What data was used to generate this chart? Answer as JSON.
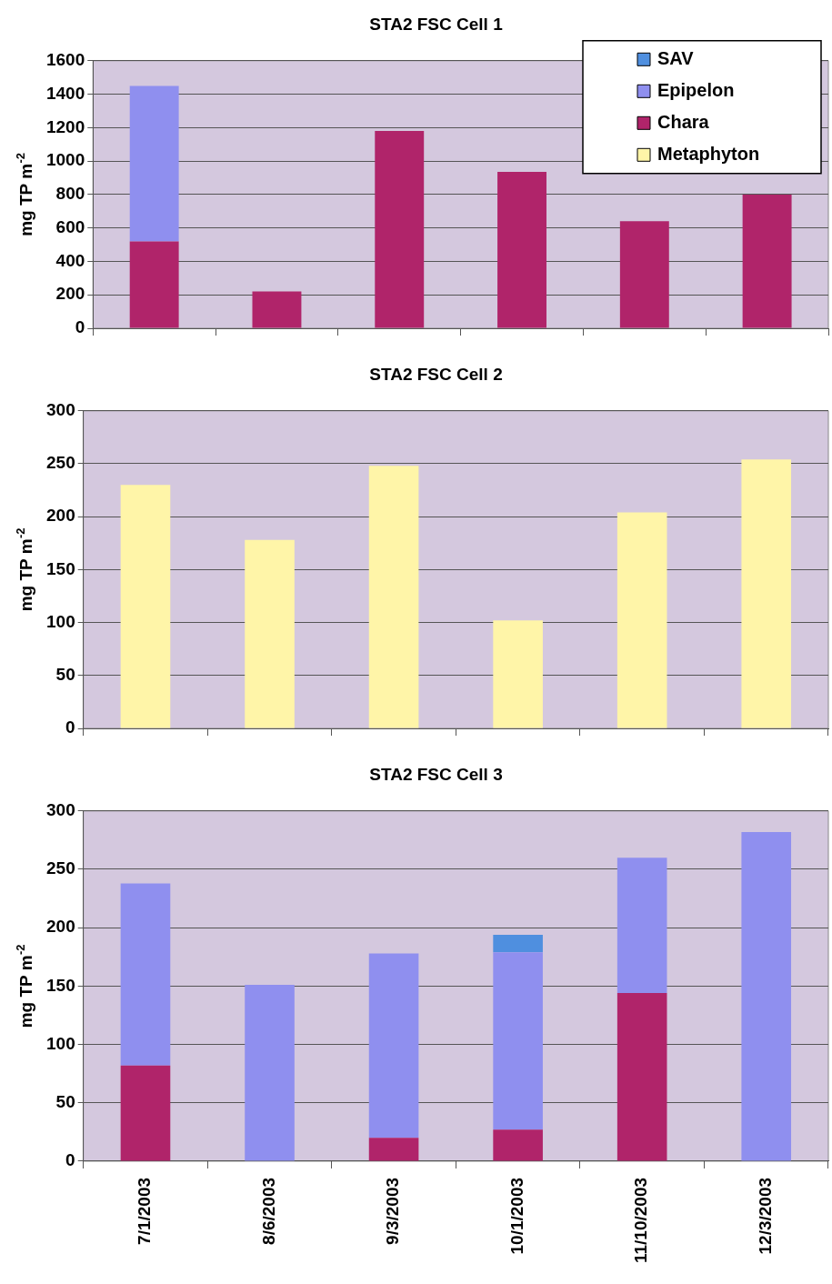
{
  "chart_data": [
    {
      "type": "bar",
      "title": "STA2 FSC Cell 1",
      "ylabel": "mg TP m$^{-2}$",
      "categories": [
        null,
        null,
        null,
        null,
        null,
        null
      ],
      "stacked": true,
      "ylim": [
        0,
        1600
      ],
      "yticks": [
        0,
        200,
        400,
        600,
        800,
        1000,
        1200,
        1400,
        1600
      ],
      "grid": "y",
      "legend": "top right",
      "series": [
        {
          "name": "Metaphyton",
          "color": "#fff5a8",
          "values": [
            null,
            null,
            null,
            null,
            null,
            null
          ]
        },
        {
          "name": "Chara",
          "color": "#b0246a",
          "values": [
            520,
            220,
            1180,
            935,
            640,
            800
          ]
        },
        {
          "name": "Epipelon",
          "color": "#8f8fef",
          "values": [
            930,
            null,
            null,
            null,
            null,
            null
          ]
        },
        {
          "name": "SAV",
          "color": "#4f8fdf",
          "values": [
            null,
            null,
            null,
            null,
            null,
            null
          ]
        }
      ]
    },
    {
      "type": "bar",
      "title": "STA2 FSC Cell 2",
      "ylabel": "mg TP m$^{-2}$",
      "categories": [
        null,
        null,
        null,
        null,
        null,
        null
      ],
      "stacked": true,
      "ylim": [
        0,
        300
      ],
      "yticks": [
        0,
        50,
        100,
        150,
        200,
        250,
        300
      ],
      "grid": "y",
      "series": [
        {
          "color": "#fff5a8",
          "values": [
            230,
            178,
            248,
            102,
            204,
            254
          ]
        }
      ]
    },
    {
      "type": "bar",
      "title": "STA2 FSC Cell 3",
      "ylabel": "mg TP m$^{-2}$",
      "categories": [
        "7/1/2003",
        "8/6/2003",
        "9/3/2003",
        "10/1/2003",
        "11/10/2003",
        "12/3/2003"
      ],
      "stacked": true,
      "ylim": [
        0,
        300
      ],
      "yticks": [
        0,
        50,
        100,
        150,
        200,
        250,
        300
      ],
      "grid": "y",
      "series": [
        {
          "color": "#b0246a",
          "values": [
            82,
            null,
            20,
            27,
            144,
            null
          ]
        },
        {
          "color": "#8f8fef",
          "values": [
            156,
            151,
            158,
            152,
            116,
            282
          ]
        },
        {
          "color": "#4f8fdf",
          "values": [
            null,
            null,
            null,
            15,
            null,
            null
          ]
        }
      ]
    }
  ]
}
